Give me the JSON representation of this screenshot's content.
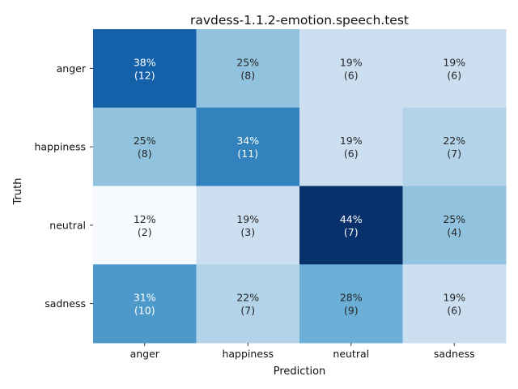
{
  "chart_data": {
    "type": "heatmap",
    "title": "ravdess-1.1.2-emotion.speech.test",
    "xlabel": "Prediction",
    "ylabel": "Truth",
    "x_categories": [
      "anger",
      "happiness",
      "neutral",
      "sadness"
    ],
    "y_categories": [
      "anger",
      "happiness",
      "neutral",
      "sadness"
    ],
    "counts": [
      [
        12,
        8,
        6,
        6
      ],
      [
        8,
        11,
        6,
        7
      ],
      [
        2,
        3,
        7,
        4
      ],
      [
        10,
        7,
        9,
        6
      ]
    ],
    "percent_labels": [
      [
        "38%",
        "25%",
        "19%",
        "19%"
      ],
      [
        "25%",
        "34%",
        "19%",
        "22%"
      ],
      [
        "12%",
        "19%",
        "44%",
        "25%"
      ],
      [
        "31%",
        "22%",
        "28%",
        "19%"
      ]
    ],
    "count_labels": [
      [
        "(12)",
        "(8)",
        "(6)",
        "(6)"
      ],
      [
        "(8)",
        "(11)",
        "(6)",
        "(7)"
      ],
      [
        "(2)",
        "(3)",
        "(7)",
        "(4)"
      ],
      [
        "(10)",
        "(7)",
        "(9)",
        "(6)"
      ]
    ],
    "colormap": "Blues",
    "colorbar": false,
    "grid": false
  }
}
